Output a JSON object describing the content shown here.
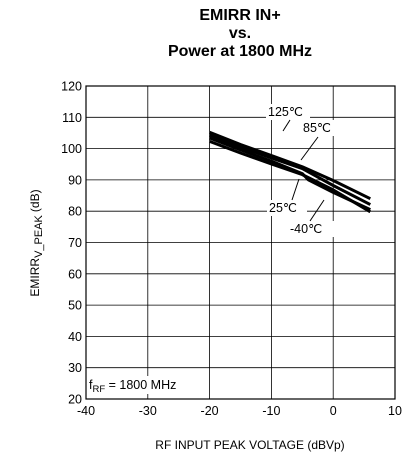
{
  "chart_data": {
    "type": "line",
    "title_lines": [
      "EMIRR IN+",
      "vs.",
      "Power at 1800 MHz"
    ],
    "xlabel": "RF INPUT PEAK VOLTAGE (dBVp)",
    "ylabel_main": "EMIRR",
    "ylabel_sub": "V_PEAK",
    "ylabel_unit": "(dB)",
    "xlim": [
      -40,
      10
    ],
    "ylim": [
      20,
      120
    ],
    "x_ticks": [
      -40,
      -30,
      -20,
      -10,
      0,
      10
    ],
    "y_ticks": [
      20,
      30,
      40,
      50,
      60,
      70,
      80,
      90,
      100,
      110,
      120
    ],
    "grid": true,
    "condition_main": "f",
    "condition_sub": "RF",
    "condition_rest": " = 1800 MHz",
    "series": [
      {
        "name": "125℃",
        "x": [
          -20,
          -15,
          -10,
          -5,
          0,
          6
        ],
        "y": [
          105.2,
          101.3,
          97.8,
          94.2,
          89.8,
          84.0
        ]
      },
      {
        "name": "85℃",
        "x": [
          -20,
          -15,
          -10,
          -5,
          0,
          6
        ],
        "y": [
          104.3,
          100.4,
          97.0,
          93.6,
          88.2,
          82.1
        ]
      },
      {
        "name": "25℃",
        "x": [
          -20,
          -15,
          -10,
          -5,
          -4,
          0,
          6
        ],
        "y": [
          103.4,
          99.6,
          96.0,
          92.0,
          90.0,
          86.0,
          80.5
        ]
      },
      {
        "name": "-40℃",
        "x": [
          -20,
          -15,
          -10,
          -5,
          0,
          6
        ],
        "y": [
          102.3,
          98.6,
          95.1,
          91.7,
          86.8,
          79.8
        ]
      }
    ]
  }
}
